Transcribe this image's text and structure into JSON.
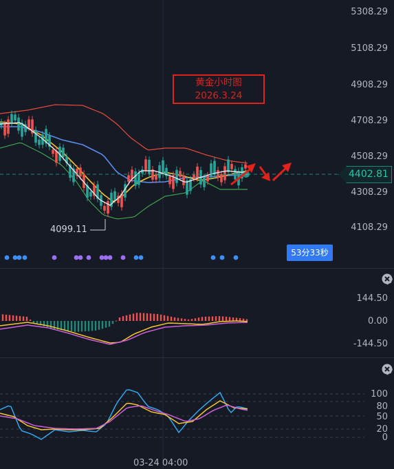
{
  "chart_data": [
    {
      "type": "candlestick",
      "title": "黄金小时图",
      "subtitle": "2026.3.24",
      "ylim": [
        4050,
        5330
      ],
      "yticks": [
        "5308.29",
        "5108.29",
        "4908.29",
        "4708.29",
        "4508.29",
        "4308.29",
        "4108.29"
      ],
      "last_price": "4402.81",
      "countdown": "53分33秒",
      "low_label": "4099.11"
    },
    {
      "type": "line",
      "name": "MACD",
      "yticks": [
        "144.50",
        "0.00",
        "-144.50"
      ]
    },
    {
      "type": "line",
      "name": "KDJ",
      "yticks": [
        "100",
        "80",
        "50",
        "20",
        "0"
      ],
      "xticks": [
        "03-24 04:00"
      ]
    }
  ],
  "colors": {
    "background": "#161a25",
    "up": "#ef5350",
    "down": "#26a69a",
    "ma_white": "#e8e8ec",
    "ma_yellow": "#f7c531",
    "ma_blue": "#5b8def",
    "band_red": "#e84b3a",
    "band_green": "#3fa34d",
    "annotation": "#e0221c"
  },
  "icons": {
    "alert": "bell-icon",
    "settings": "gear-icon",
    "close": "close-icon"
  }
}
